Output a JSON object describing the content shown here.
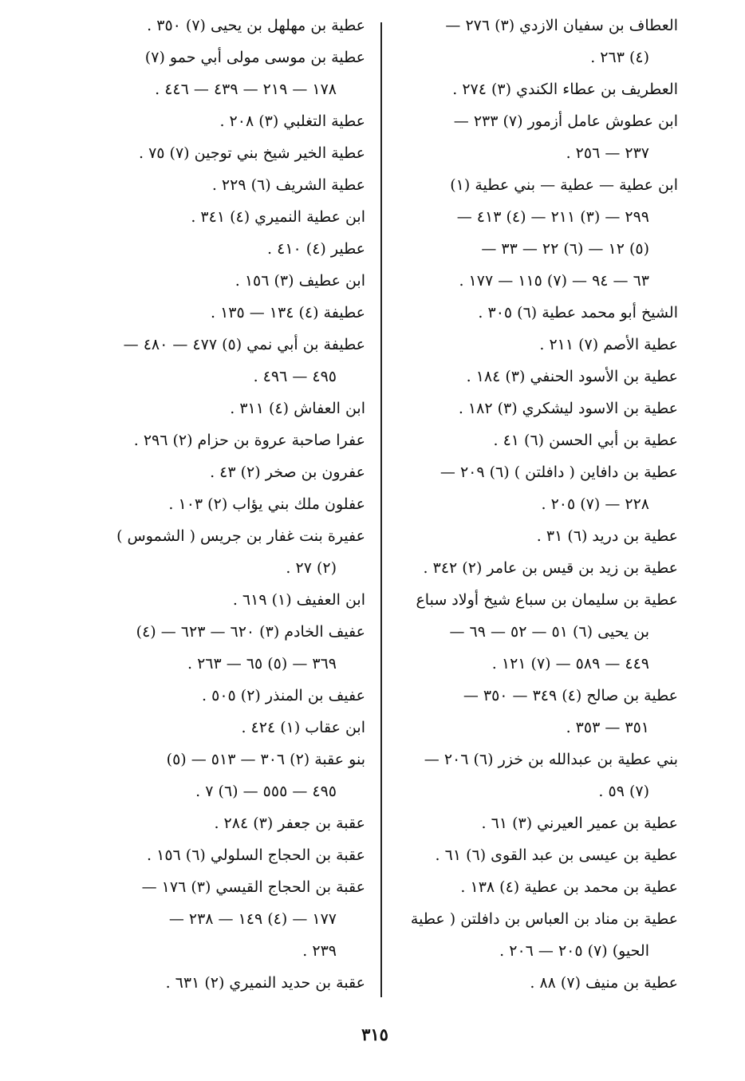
{
  "right_column": [
    {
      "t": "العطاف بن سفيان الازدي (٣) ٢٧٦ —",
      "k": "h"
    },
    {
      "t": "(٤) ٢٦٣ .",
      "k": "c"
    },
    {
      "t": "العطريف بن عطاء الكندي (٣) ٢٧٤ .",
      "k": "h"
    },
    {
      "t": "ابن عطوش عامل أزمور (٧) ٢٣٣ —",
      "k": "h"
    },
    {
      "t": "٢٣٧ — ٢٥٦ .",
      "k": "c"
    },
    {
      "t": "ابن عطية — عطية — بني عطية (١)",
      "k": "h"
    },
    {
      "t": "٢٩٩ — (٣) ٢١١ — (٤) ٤١٣ —",
      "k": "c"
    },
    {
      "t": "(٥) ١٢ — (٦) ٢٢ — ٣٣ —",
      "k": "c"
    },
    {
      "t": "٦٣ — ٩٤ — (٧) ١١٥ — ١٧٧ .",
      "k": "c"
    },
    {
      "t": "الشيخ أبو محمد عطية (٦) ٣٠٥ .",
      "k": "h"
    },
    {
      "t": "عطية الأصم (٧) ٢١١ .",
      "k": "h"
    },
    {
      "t": "عطية بن الأسود الحنفي (٣) ١٨٤ .",
      "k": "h"
    },
    {
      "t": "عطية بن الاسود ليشكري (٣) ١٨٢ .",
      "k": "h"
    },
    {
      "t": "عطية بن أبي الحسن (٦) ٤١ .",
      "k": "h"
    },
    {
      "t": "عطية بن دافاين ( دافلتن ) (٦) ٢٠٩ —",
      "k": "h"
    },
    {
      "t": "٢٢٨ — (٧) ٢٠٥ .",
      "k": "c"
    },
    {
      "t": "عطية بن دريد (٦) ٣١ .",
      "k": "h"
    },
    {
      "t": "عطية بن زيد بن قيس بن عامر (٢) ٣٤٢ .",
      "k": "h"
    },
    {
      "t": "عطية بن سليمان بن سباع شيخ أولاد سباع",
      "k": "h"
    },
    {
      "t": "بن يحيى (٦) ٥١ — ٥٢ — ٦٩ —",
      "k": "c"
    },
    {
      "t": "٤٤٩ — ٥٨٩ — (٧) ١٢١ .",
      "k": "c"
    },
    {
      "t": "عطية بن صالح (٤) ٣٤٩ — ٣٥٠ —",
      "k": "h"
    },
    {
      "t": "٣٥١ — ٣٥٣ .",
      "k": "c"
    },
    {
      "t": "بني عطية بن عبدالله بن خزر (٦) ٢٠٦ —",
      "k": "h"
    },
    {
      "t": "(٧) ٥٩ .",
      "k": "c"
    },
    {
      "t": "عطية بن عمير العيرني (٣) ٦١ .",
      "k": "h"
    },
    {
      "t": "عطية بن عيسى بن عبد القوى (٦) ٦١ .",
      "k": "h"
    },
    {
      "t": "عطية بن محمد بن عطية (٤) ١٣٨ .",
      "k": "h"
    },
    {
      "t": "عطية بن مناد بن العباس بن دافلتن ( عطية",
      "k": "h"
    },
    {
      "t": "الحيو) (٧) ٢٠٥ — ٢٠٦ .",
      "k": "c"
    },
    {
      "t": "عطية بن منيف (٧) ٨٨ .",
      "k": "h"
    }
  ],
  "left_column": [
    {
      "t": "عطية بن مهلهل بن يحيى (٧) ٣٥٠ .",
      "k": "h"
    },
    {
      "t": "عطية بن موسى مولى أبي حمو (٧)",
      "k": "h"
    },
    {
      "t": "١٧٨ — ٢١٩ — ٤٣٩ — ٤٤٦ .",
      "k": "c"
    },
    {
      "t": "عطية التغلبي (٣) ٢٠٨ .",
      "k": "h"
    },
    {
      "t": "عطية الخير شيخ بني توجين (٧) ٧٥ .",
      "k": "h"
    },
    {
      "t": "عطية الشريف (٦) ٢٢٩ .",
      "k": "h"
    },
    {
      "t": "ابن عطية النميري (٤) ٣٤١ .",
      "k": "h"
    },
    {
      "t": "عطير (٤) ٤١٠ .",
      "k": "h"
    },
    {
      "t": "ابن عطيف (٣) ١٥٦ .",
      "k": "h"
    },
    {
      "t": "عطيفة (٤) ١٣٤ — ١٣٥ .",
      "k": "h"
    },
    {
      "t": "عطيفة بن أبي نمي (٥) ٤٧٧ — ٤٨٠ —",
      "k": "h"
    },
    {
      "t": "٤٩٥ — ٤٩٦ .",
      "k": "c"
    },
    {
      "t": "ابن العفاش (٤) ٣١١ .",
      "k": "h"
    },
    {
      "t": "عفرا صاحبة عروة بن حزام (٢) ٢٩٦ .",
      "k": "h"
    },
    {
      "t": "عفرون بن صخر (٢) ٤٣ .",
      "k": "h"
    },
    {
      "t": "عفلون ملك بني يؤاب (٢) ١٠٣ .",
      "k": "h"
    },
    {
      "t": "عفيرة بنت غفار بن جريس ( الشموس )",
      "k": "h"
    },
    {
      "t": "(٢) ٢٧ .",
      "k": "c"
    },
    {
      "t": "ابن العفيف (١) ٦١٩ .",
      "k": "h"
    },
    {
      "t": "عفيف الخادم (٣) ٦٢٠ — ٦٢٣ — (٤)",
      "k": "h"
    },
    {
      "t": "٣٦٩ — (٥) ٦٥ — ٢٦٣ .",
      "k": "c"
    },
    {
      "t": "عفيف بن المنذر (٢) ٥٠٥ .",
      "k": "h"
    },
    {
      "t": "ابن عقاب (١) ٤٢٤ .",
      "k": "h"
    },
    {
      "t": "بنو عقبة (٢) ٣٠٦ — ٥١٣ — (٥)",
      "k": "h"
    },
    {
      "t": "٤٩٥ — ٥٥٥ — (٦) ٧ .",
      "k": "c"
    },
    {
      "t": "عقبة بن جعفر (٣) ٢٨٤ .",
      "k": "h"
    },
    {
      "t": "عقبة بن الحجاج السلولي (٦) ١٥٦ .",
      "k": "h"
    },
    {
      "t": "عقبة بن الحجاج القيسي (٣) ١٧٦ —",
      "k": "h"
    },
    {
      "t": "١٧٧ — (٤) ١٤٩ — ٢٣٨ —",
      "k": "c"
    },
    {
      "t": "٢٣٩ .",
      "k": "c"
    },
    {
      "t": "عقبة بن حديد النميري (٢) ٦٣١ .",
      "k": "h"
    }
  ],
  "page_number": "٣١٥"
}
